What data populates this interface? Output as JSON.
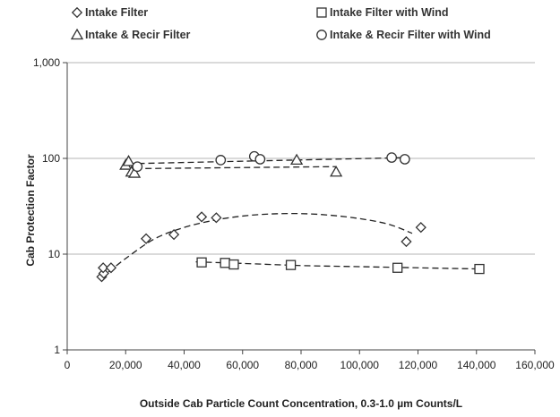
{
  "chart_data": {
    "type": "scatter",
    "xlabel": "Outside Cab Particle Count Concentration, 0.3-1.0 µm Counts/L",
    "ylabel": "Cab Protection Factor",
    "x_ticks": [
      "0",
      "20,000",
      "40,000",
      "60,000",
      "80,000",
      "100,000",
      "120,000",
      "140,000",
      "160,000"
    ],
    "y_ticks": [
      "1",
      "10",
      "100",
      "1,000"
    ],
    "xlim": [
      0,
      160000
    ],
    "ylim": [
      1,
      1000
    ],
    "y_scale": "log",
    "grid": "horizontal",
    "legend_position": "top",
    "series": [
      {
        "name": "Intake Filter",
        "marker": "diamond",
        "points": [
          [
            11800,
            5.8
          ],
          [
            12500,
            6.3
          ],
          [
            12300,
            7.2
          ],
          [
            15000,
            7.2
          ],
          [
            27000,
            14.5
          ],
          [
            36500,
            16.0
          ],
          [
            46000,
            24.5
          ],
          [
            51000,
            24.0
          ],
          [
            116000,
            13.5
          ],
          [
            121000,
            19.0
          ]
        ],
        "trend": [
          [
            11500,
            5.6
          ],
          [
            20000,
            9.0
          ],
          [
            30000,
            14.5
          ],
          [
            40000,
            19.0
          ],
          [
            50000,
            22.5
          ],
          [
            60000,
            25.0
          ],
          [
            70000,
            26.3
          ],
          [
            80000,
            26.5
          ],
          [
            90000,
            25.5
          ],
          [
            100000,
            23.5
          ],
          [
            110000,
            20.5
          ],
          [
            118000,
            16.5
          ]
        ]
      },
      {
        "name": "Intake Filter with Wind",
        "marker": "square",
        "points": [
          [
            46000,
            8.2
          ],
          [
            54000,
            8.1
          ],
          [
            57000,
            7.8
          ],
          [
            76500,
            7.7
          ],
          [
            113000,
            7.2
          ],
          [
            141000,
            7.0
          ]
        ],
        "trend": [
          [
            44000,
            8.3
          ],
          [
            60000,
            8.0
          ],
          [
            80000,
            7.6
          ],
          [
            100000,
            7.4
          ],
          [
            120000,
            7.2
          ],
          [
            141000,
            7.0
          ]
        ]
      },
      {
        "name": "Intake & Recir Filter",
        "marker": "triangle",
        "points": [
          [
            20000,
            85
          ],
          [
            21000,
            93
          ],
          [
            22000,
            72
          ],
          [
            23000,
            70
          ],
          [
            78500,
            96
          ],
          [
            92000,
            72
          ]
        ],
        "trend": [
          [
            20000,
            78
          ],
          [
            92000,
            82
          ]
        ]
      },
      {
        "name": "Intake & Recir Filter with Wind",
        "marker": "circle",
        "points": [
          [
            24000,
            82
          ],
          [
            52500,
            96
          ],
          [
            64000,
            105
          ],
          [
            66000,
            98
          ],
          [
            111000,
            102
          ],
          [
            115500,
            98
          ]
        ],
        "trend": [
          [
            21000,
            88
          ],
          [
            117000,
            102
          ]
        ]
      }
    ]
  }
}
